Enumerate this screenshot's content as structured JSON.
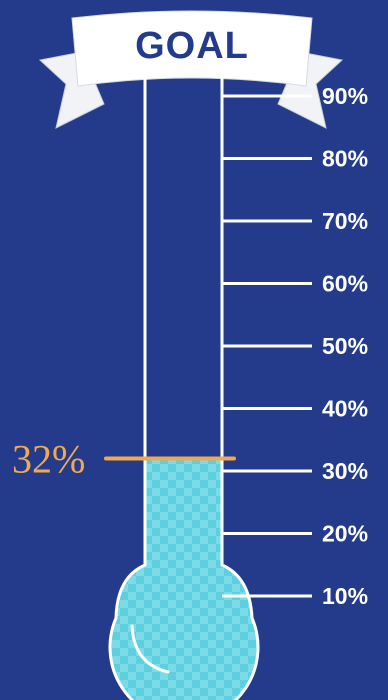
{
  "banner": {
    "label": "GOAL"
  },
  "progress": {
    "value": 0.32,
    "label": "32%"
  },
  "scale": {
    "ticks": [
      {
        "value": 0.9,
        "label": "90%"
      },
      {
        "value": 0.8,
        "label": "80%"
      },
      {
        "value": 0.7,
        "label": "70%"
      },
      {
        "value": 0.6,
        "label": "60%"
      },
      {
        "value": 0.5,
        "label": "50%"
      },
      {
        "value": 0.4,
        "label": "40%"
      },
      {
        "value": 0.3,
        "label": "30%"
      },
      {
        "value": 0.2,
        "label": "20%"
      },
      {
        "value": 0.1,
        "label": "10%"
      }
    ]
  },
  "colors": {
    "background": "#243b8c",
    "fill": "#5fd0e0",
    "marker": "#f2a94b",
    "outline": "#ffffff"
  }
}
